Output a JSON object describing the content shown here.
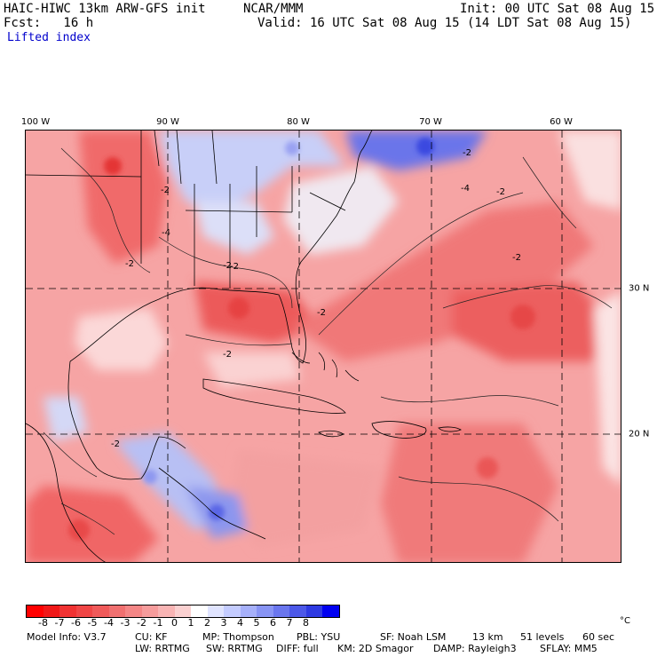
{
  "header": {
    "model_title": "HAIC-HIWC 13km ARW-GFS init",
    "org": "NCAR/MMM",
    "init": "Init: 00 UTC Sat 08 Aug 15",
    "fcst": "Fcst:   16 h",
    "valid": "Valid: 16 UTC Sat 08 Aug 15 (14 LDT Sat 08 Aug 15)",
    "field": "Lifted index"
  },
  "map": {
    "lon_labels": [
      "100 W",
      "90 W",
      "80 W",
      "70 W",
      "60 W"
    ],
    "lat_labels": [
      "30 N",
      "20 N"
    ],
    "contour_labels": [
      "-2",
      "-2",
      "-2",
      "-2",
      "-4",
      "-2",
      "-4",
      "-2",
      "-2",
      "-2",
      "-2",
      "-2"
    ]
  },
  "colorbar": {
    "ticks": [
      "-8",
      "-7",
      "-6",
      "-5",
      "-4",
      "-3",
      "-2",
      "-1",
      "0",
      "1",
      "2",
      "3",
      "4",
      "5",
      "6",
      "7",
      "8"
    ],
    "unit": "°C",
    "colors": [
      "#ff0000",
      "#f01818",
      "#f03232",
      "#f04646",
      "#f05a5a",
      "#f07070",
      "#f48686",
      "#f69c9c",
      "#f8b4b4",
      "#fad0d0",
      "#ffffff",
      "#e0e4ff",
      "#c4ccff",
      "#a6b0fa",
      "#8894f4",
      "#6a76ee",
      "#4c58e8",
      "#2e3ae2",
      "#0000f0"
    ]
  },
  "footer": {
    "line1": [
      "Model Info: V3.7",
      "CU: KF",
      "MP: Thompson",
      "PBL: YSU",
      "SF: Noah LSM",
      "13 km",
      "51 levels",
      "60 sec"
    ],
    "line2": [
      "LW: RRTMG",
      "SW: RRTMG",
      "DIFF: full",
      "KM: 2D Smagor",
      "DAMP: Rayleigh3",
      "SFLAY: MM5"
    ]
  }
}
